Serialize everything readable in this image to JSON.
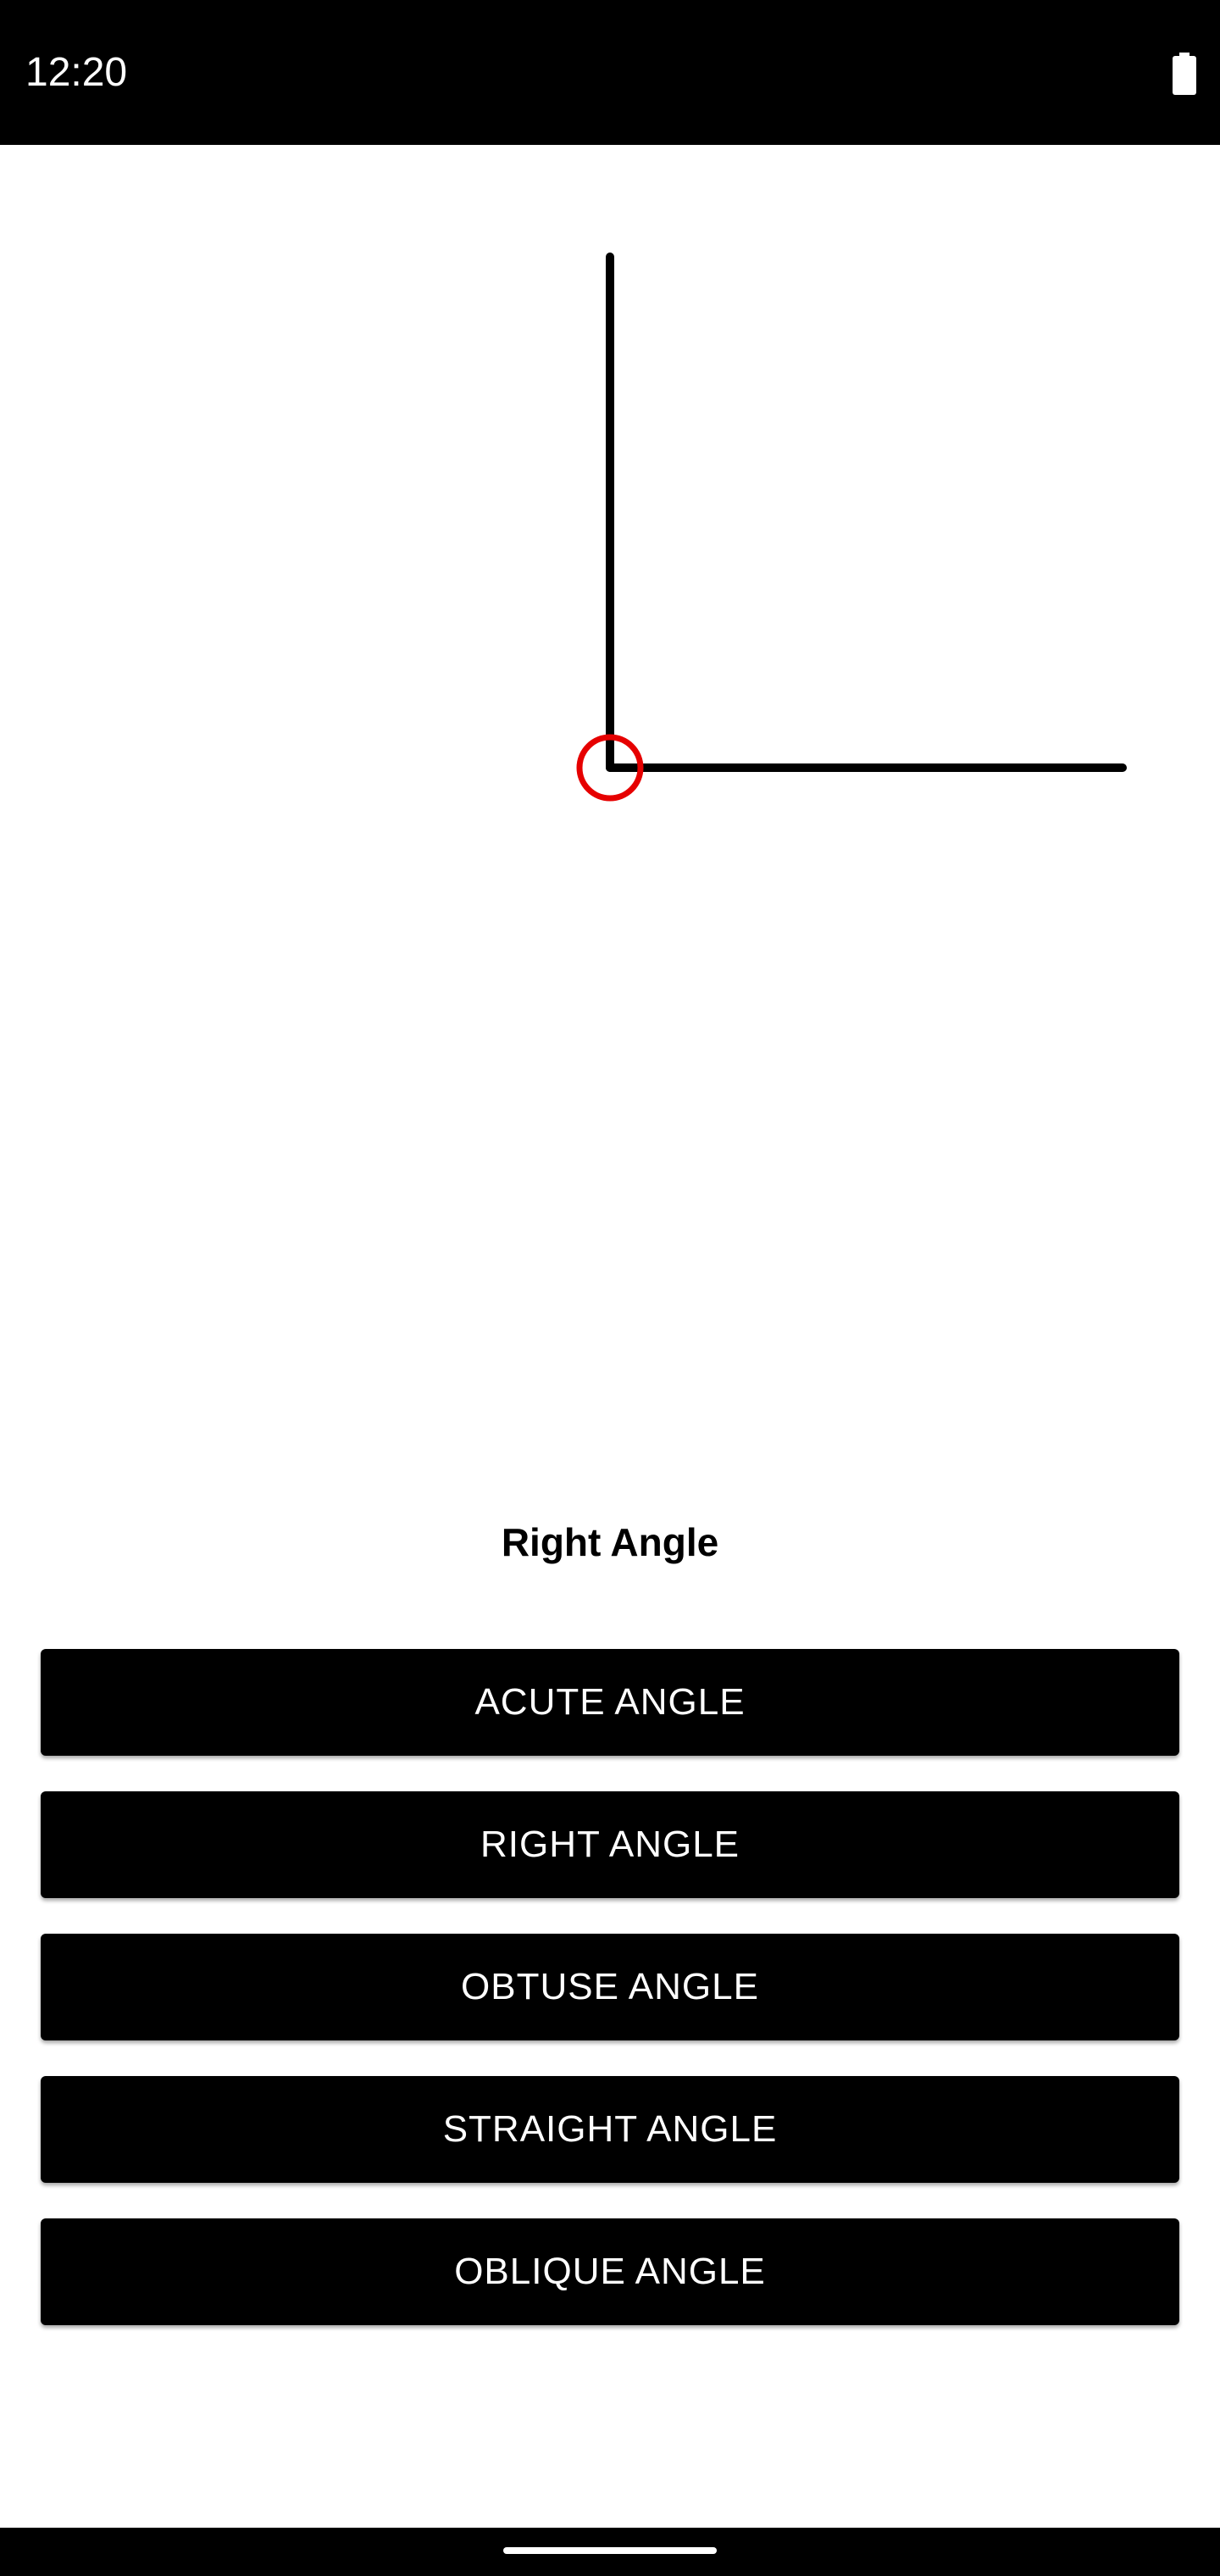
{
  "status_bar": {
    "time": "12:20",
    "battery_icon": "battery-full-icon"
  },
  "diagram": {
    "angle_degrees": 90,
    "line_color": "#000000",
    "vertex_marker_color": "#e60000"
  },
  "main": {
    "angle_label": "Right Angle"
  },
  "buttons": [
    {
      "label": "ACUTE ANGLE"
    },
    {
      "label": "RIGHT ANGLE"
    },
    {
      "label": "OBTUSE ANGLE"
    },
    {
      "label": "STRAIGHT ANGLE"
    },
    {
      "label": "OBLIQUE ANGLE"
    }
  ],
  "colors": {
    "background": "#ffffff",
    "button_bg": "#000000",
    "button_text": "#ffffff"
  }
}
